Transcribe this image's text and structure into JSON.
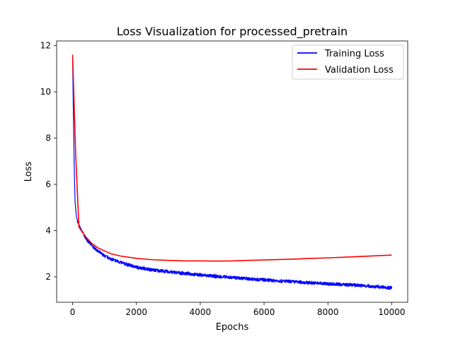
{
  "chart_data": {
    "type": "line",
    "title": "Loss Visualization for processed_pretrain",
    "xlabel": "Epochs",
    "ylabel": "Loss",
    "xlim": [
      -500,
      10500
    ],
    "ylim": [
      0.9,
      12.2
    ],
    "xticks": [
      0,
      2000,
      4000,
      6000,
      8000,
      10000
    ],
    "xtick_labels": [
      "0",
      "2000",
      "4000",
      "6000",
      "8000",
      "10000"
    ],
    "yticks": [
      2,
      4,
      6,
      8,
      10,
      12
    ],
    "ytick_labels": [
      "2",
      "4",
      "6",
      "8",
      "10",
      "12"
    ],
    "grid": false,
    "legend_position": "top-right",
    "series": [
      {
        "name": "Training Loss",
        "color": "#0000ff",
        "noise": 0.07,
        "x": [
          0,
          20,
          50,
          80,
          120,
          200,
          300,
          400,
          600,
          800,
          1000,
          1300,
          1600,
          2000,
          2500,
          3000,
          3500,
          4000,
          4500,
          5000,
          6000,
          7000,
          8000,
          9000,
          10000
        ],
        "values": [
          11.6,
          9.5,
          6.8,
          5.2,
          4.6,
          4.2,
          3.95,
          3.7,
          3.35,
          3.1,
          2.9,
          2.72,
          2.58,
          2.42,
          2.3,
          2.22,
          2.15,
          2.08,
          2.02,
          1.97,
          1.87,
          1.78,
          1.7,
          1.63,
          1.52
        ]
      },
      {
        "name": "Validation Loss",
        "color": "#ff0000",
        "noise": 0,
        "x": [
          0,
          100,
          200,
          400,
          600,
          800,
          1000,
          1200,
          1500,
          2000,
          2500,
          3000,
          3500,
          4000,
          4500,
          5000,
          5500,
          6000,
          6500,
          7000,
          7500,
          8000,
          8500,
          9000,
          9500,
          10000
        ],
        "values": [
          11.6,
          7.2,
          4.15,
          3.75,
          3.45,
          3.25,
          3.12,
          3.0,
          2.9,
          2.8,
          2.74,
          2.71,
          2.69,
          2.69,
          2.68,
          2.69,
          2.71,
          2.73,
          2.75,
          2.77,
          2.8,
          2.82,
          2.85,
          2.88,
          2.91,
          2.94
        ]
      }
    ]
  }
}
